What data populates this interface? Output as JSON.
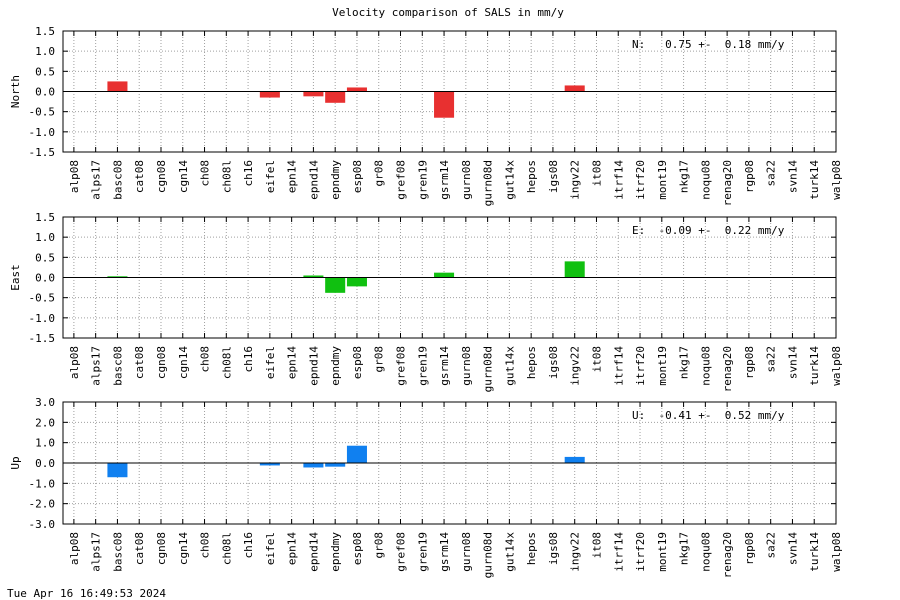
{
  "title": "Velocity comparison of SALS in mm/y",
  "timestamp": "Tue Apr 16 16:49:53 2024",
  "chart_data": [
    {
      "type": "bar",
      "ylabel": "North",
      "ylim": [
        -1.5,
        1.5
      ],
      "yticks": [
        "1.5",
        "1.0",
        "0.5",
        "0.0",
        "-0.5",
        "-1.0",
        "-1.5"
      ],
      "annotation": "N:   0.75 +-  0.18 mm/y",
      "color": "#e83030",
      "grid": true,
      "categories": [
        "alp08",
        "alps17",
        "basc08",
        "cat08",
        "cgn08",
        "cgn14",
        "ch08",
        "ch08l",
        "ch16",
        "eifel",
        "epn14",
        "epnd14",
        "epndmy",
        "esp08",
        "gr08",
        "gref08",
        "gren19",
        "gsrm14",
        "gurn08",
        "gurn08d",
        "gut14x",
        "hepos",
        "igs08",
        "ingv22",
        "it08",
        "itrf14",
        "itrf20",
        "mont19",
        "nkg17",
        "noqu08",
        "renag20",
        "rgp08",
        "sa22",
        "svn14",
        "turk14",
        "walp08"
      ],
      "values": [
        0,
        0,
        0.25,
        0,
        0,
        0,
        0,
        0,
        0,
        -0.15,
        0,
        -0.12,
        -0.28,
        0.1,
        0,
        0,
        0,
        -0.65,
        0,
        0,
        0,
        0,
        0,
        0.15,
        0,
        0,
        0,
        0,
        0,
        0,
        0,
        0,
        0,
        0,
        0,
        0
      ]
    },
    {
      "type": "bar",
      "ylabel": "East",
      "ylim": [
        -1.5,
        1.5
      ],
      "yticks": [
        "1.5",
        "1.0",
        "0.5",
        "0.0",
        "-0.5",
        "-1.0",
        "-1.5"
      ],
      "annotation": "E:  -0.09 +-  0.22 mm/y",
      "color": "#10c010",
      "grid": true,
      "categories": [
        "alp08",
        "alps17",
        "basc08",
        "cat08",
        "cgn08",
        "cgn14",
        "ch08",
        "ch08l",
        "ch16",
        "eifel",
        "epn14",
        "epnd14",
        "epndmy",
        "esp08",
        "gr08",
        "gref08",
        "gren19",
        "gsrm14",
        "gurn08",
        "gurn08d",
        "gut14x",
        "hepos",
        "igs08",
        "ingv22",
        "it08",
        "itrf14",
        "itrf20",
        "mont19",
        "nkg17",
        "noqu08",
        "renag20",
        "rgp08",
        "sa22",
        "svn14",
        "turk14",
        "walp08"
      ],
      "values": [
        0,
        0,
        0.03,
        0,
        0,
        0,
        0,
        0,
        0,
        0,
        0,
        0.05,
        -0.38,
        -0.22,
        0,
        0,
        0,
        0.12,
        0,
        0,
        0,
        0,
        0,
        0.4,
        0,
        0,
        0,
        0,
        0,
        0,
        0,
        0,
        0,
        0,
        0,
        0
      ]
    },
    {
      "type": "bar",
      "ylabel": "Up",
      "ylim": [
        -3.0,
        3.0
      ],
      "yticks": [
        "3.0",
        "2.0",
        "1.0",
        "0.0",
        "-1.0",
        "-2.0",
        "-3.0"
      ],
      "annotation": "U:  -0.41 +-  0.52 mm/y",
      "color": "#1080f0",
      "grid": true,
      "categories": [
        "alp08",
        "alps17",
        "basc08",
        "cat08",
        "cgn08",
        "cgn14",
        "ch08",
        "ch08l",
        "ch16",
        "eifel",
        "epn14",
        "epnd14",
        "epndmy",
        "esp08",
        "gr08",
        "gref08",
        "gren19",
        "gsrm14",
        "gurn08",
        "gurn08d",
        "gut14x",
        "hepos",
        "igs08",
        "ingv22",
        "it08",
        "itrf14",
        "itrf20",
        "mont19",
        "nkg17",
        "noqu08",
        "renag20",
        "rgp08",
        "sa22",
        "svn14",
        "turk14",
        "walp08"
      ],
      "values": [
        0,
        0,
        -0.7,
        0,
        0,
        0,
        0,
        0,
        0,
        -0.12,
        0,
        -0.22,
        -0.18,
        0.85,
        0,
        0,
        0,
        0,
        0,
        0,
        0,
        0,
        0,
        0.3,
        0,
        0,
        0,
        0,
        0,
        0,
        0,
        0,
        0,
        0,
        0,
        0
      ]
    }
  ]
}
